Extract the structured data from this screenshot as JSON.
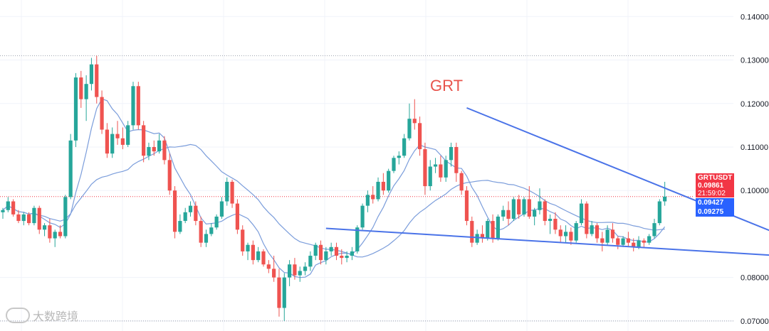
{
  "chart_data": {
    "type": "candlestick",
    "title": "GRT",
    "symbol": "GRTUSDT",
    "ylim": [
      0.069,
      0.1425
    ],
    "y_ticks": [
      "0.14000",
      "0.13000",
      "0.12000",
      "0.11000",
      "0.10000",
      "0.08000",
      "0.07000"
    ],
    "last_price": "0.09861",
    "countdown": "21:59:02",
    "ma_values": [
      "0.09427",
      "0.09275"
    ],
    "colors": {
      "up": "#26a69a",
      "down": "#ef5350",
      "ma": "#7b9ddb",
      "trendline": "#4a73e8",
      "title": "#e8534b",
      "price_tag": "#f23645",
      "ma_tag": "#2962ff"
    },
    "candles": [
      [
        0.095,
        0.096,
        0.0935,
        0.0955
      ],
      [
        0.0955,
        0.0985,
        0.095,
        0.0975
      ],
      [
        0.0975,
        0.098,
        0.094,
        0.0945
      ],
      [
        0.0945,
        0.0955,
        0.0925,
        0.093
      ],
      [
        0.093,
        0.095,
        0.092,
        0.0945
      ],
      [
        0.0945,
        0.095,
        0.092,
        0.0925
      ],
      [
        0.0925,
        0.0965,
        0.092,
        0.096
      ],
      [
        0.096,
        0.0965,
        0.09,
        0.091
      ],
      [
        0.091,
        0.0925,
        0.0895,
        0.092
      ],
      [
        0.092,
        0.0935,
        0.088,
        0.089
      ],
      [
        0.089,
        0.091,
        0.087,
        0.0905
      ],
      [
        0.0905,
        0.092,
        0.089,
        0.0895
      ],
      [
        0.0895,
        0.099,
        0.089,
        0.0985
      ],
      [
        0.0985,
        0.113,
        0.098,
        0.1115
      ],
      [
        0.1115,
        0.127,
        0.11,
        0.126
      ],
      [
        0.126,
        0.1275,
        0.119,
        0.121
      ],
      [
        0.121,
        0.1265,
        0.116,
        0.1245
      ],
      [
        0.1245,
        0.1305,
        0.123,
        0.129
      ],
      [
        0.129,
        0.131,
        0.12,
        0.1215
      ],
      [
        0.1215,
        0.123,
        0.113,
        0.114
      ],
      [
        0.114,
        0.1155,
        0.1075,
        0.1085
      ],
      [
        0.1085,
        0.1145,
        0.1075,
        0.113
      ],
      [
        0.113,
        0.116,
        0.1105,
        0.112
      ],
      [
        0.112,
        0.1145,
        0.1095,
        0.1105
      ],
      [
        0.1105,
        0.116,
        0.11,
        0.115
      ],
      [
        0.115,
        0.125,
        0.114,
        0.124
      ],
      [
        0.124,
        0.125,
        0.114,
        0.115
      ],
      [
        0.115,
        0.116,
        0.1065,
        0.108
      ],
      [
        0.108,
        0.111,
        0.107,
        0.11
      ],
      [
        0.11,
        0.1115,
        0.108,
        0.109
      ],
      [
        0.109,
        0.113,
        0.1085,
        0.1115
      ],
      [
        0.1115,
        0.1125,
        0.106,
        0.107
      ],
      [
        0.107,
        0.1085,
        0.099,
        0.1
      ],
      [
        0.1,
        0.101,
        0.089,
        0.0905
      ],
      [
        0.0905,
        0.0945,
        0.09,
        0.093
      ],
      [
        0.093,
        0.096,
        0.0925,
        0.095
      ],
      [
        0.095,
        0.0975,
        0.094,
        0.0965
      ],
      [
        0.0965,
        0.0975,
        0.092,
        0.093
      ],
      [
        0.093,
        0.094,
        0.087,
        0.088
      ],
      [
        0.088,
        0.091,
        0.087,
        0.09
      ],
      [
        0.09,
        0.0925,
        0.0895,
        0.0915
      ],
      [
        0.0915,
        0.0945,
        0.091,
        0.094
      ],
      [
        0.094,
        0.0985,
        0.0935,
        0.0975
      ],
      [
        0.0975,
        0.103,
        0.0965,
        0.102
      ],
      [
        0.102,
        0.1025,
        0.096,
        0.097
      ],
      [
        0.097,
        0.098,
        0.09,
        0.091
      ],
      [
        0.091,
        0.092,
        0.085,
        0.086
      ],
      [
        0.086,
        0.088,
        0.084,
        0.0875
      ],
      [
        0.0875,
        0.0885,
        0.083,
        0.084
      ],
      [
        0.084,
        0.087,
        0.0835,
        0.086
      ],
      [
        0.086,
        0.0865,
        0.0825,
        0.083
      ],
      [
        0.083,
        0.084,
        0.081,
        0.082
      ],
      [
        0.082,
        0.085,
        0.079,
        0.08
      ],
      [
        0.08,
        0.082,
        0.071,
        0.073
      ],
      [
        0.073,
        0.081,
        0.07,
        0.08
      ],
      [
        0.08,
        0.084,
        0.078,
        0.083
      ],
      [
        0.083,
        0.0845,
        0.0795,
        0.0805
      ],
      [
        0.0805,
        0.0825,
        0.079,
        0.0815
      ],
      [
        0.0815,
        0.0835,
        0.0805,
        0.0825
      ],
      [
        0.0825,
        0.086,
        0.0815,
        0.085
      ],
      [
        0.085,
        0.088,
        0.084,
        0.0875
      ],
      [
        0.0875,
        0.0885,
        0.083,
        0.084
      ],
      [
        0.084,
        0.087,
        0.083,
        0.086
      ],
      [
        0.086,
        0.088,
        0.085,
        0.087
      ],
      [
        0.087,
        0.088,
        0.084,
        0.085
      ],
      [
        0.085,
        0.0865,
        0.083,
        0.0845
      ],
      [
        0.0845,
        0.086,
        0.0835,
        0.085
      ],
      [
        0.085,
        0.087,
        0.084,
        0.086
      ],
      [
        0.086,
        0.092,
        0.0855,
        0.0915
      ],
      [
        0.0915,
        0.097,
        0.091,
        0.0965
      ],
      [
        0.0965,
        0.1,
        0.095,
        0.099
      ],
      [
        0.099,
        0.101,
        0.097,
        0.098
      ],
      [
        0.098,
        0.103,
        0.0975,
        0.102
      ],
      [
        0.102,
        0.104,
        0.099,
        0.1
      ],
      [
        0.1,
        0.105,
        0.0995,
        0.1045
      ],
      [
        0.1045,
        0.108,
        0.104,
        0.1075
      ],
      [
        0.1075,
        0.109,
        0.106,
        0.108
      ],
      [
        0.108,
        0.113,
        0.1075,
        0.112
      ],
      [
        0.112,
        0.12,
        0.1115,
        0.1165
      ],
      [
        0.1165,
        0.121,
        0.114,
        0.1155
      ],
      [
        0.1155,
        0.117,
        0.108,
        0.1095
      ],
      [
        0.1095,
        0.111,
        0.099,
        0.101
      ],
      [
        0.101,
        0.107,
        0.1,
        0.1055
      ],
      [
        0.1055,
        0.1075,
        0.104,
        0.106
      ],
      [
        0.106,
        0.108,
        0.102,
        0.103
      ],
      [
        0.103,
        0.108,
        0.102,
        0.107
      ],
      [
        0.107,
        0.111,
        0.1055,
        0.11
      ],
      [
        0.11,
        0.111,
        0.102,
        0.104
      ],
      [
        0.104,
        0.1045,
        0.099,
        0.1
      ],
      [
        0.1,
        0.101,
        0.092,
        0.093
      ],
      [
        0.093,
        0.094,
        0.087,
        0.088
      ],
      [
        0.088,
        0.091,
        0.0875,
        0.09
      ],
      [
        0.09,
        0.092,
        0.088,
        0.089
      ],
      [
        0.089,
        0.0935,
        0.0885,
        0.093
      ],
      [
        0.093,
        0.0945,
        0.088,
        0.089
      ],
      [
        0.089,
        0.0945,
        0.0885,
        0.094
      ],
      [
        0.094,
        0.0965,
        0.093,
        0.0955
      ],
      [
        0.0955,
        0.0975,
        0.092,
        0.0935
      ],
      [
        0.0935,
        0.0985,
        0.093,
        0.098
      ],
      [
        0.098,
        0.099,
        0.0935,
        0.0945
      ],
      [
        0.0945,
        0.0985,
        0.094,
        0.098
      ],
      [
        0.098,
        0.101,
        0.0935,
        0.094
      ],
      [
        0.094,
        0.096,
        0.092,
        0.0955
      ],
      [
        0.0955,
        0.1005,
        0.0945,
        0.0975
      ],
      [
        0.0975,
        0.098,
        0.092,
        0.093
      ],
      [
        0.093,
        0.0945,
        0.09,
        0.0935
      ],
      [
        0.0935,
        0.095,
        0.09,
        0.091
      ],
      [
        0.091,
        0.092,
        0.088,
        0.0895
      ],
      [
        0.0895,
        0.092,
        0.088,
        0.0905
      ],
      [
        0.0905,
        0.0915,
        0.0875,
        0.0885
      ],
      [
        0.0885,
        0.093,
        0.088,
        0.0925
      ],
      [
        0.0925,
        0.098,
        0.092,
        0.097
      ],
      [
        0.097,
        0.0975,
        0.089,
        0.09
      ],
      [
        0.09,
        0.093,
        0.0895,
        0.092
      ],
      [
        0.092,
        0.0925,
        0.088,
        0.089
      ],
      [
        0.089,
        0.0905,
        0.086,
        0.088
      ],
      [
        0.088,
        0.092,
        0.0875,
        0.091
      ],
      [
        0.091,
        0.0925,
        0.088,
        0.089
      ],
      [
        0.089,
        0.0895,
        0.0865,
        0.0875
      ],
      [
        0.0875,
        0.0895,
        0.087,
        0.089
      ],
      [
        0.089,
        0.0905,
        0.087,
        0.088
      ],
      [
        0.088,
        0.089,
        0.086,
        0.087
      ],
      [
        0.087,
        0.0895,
        0.0865,
        0.0885
      ],
      [
        0.0885,
        0.089,
        0.087,
        0.088
      ],
      [
        0.088,
        0.09,
        0.0875,
        0.0895
      ],
      [
        0.0895,
        0.0935,
        0.089,
        0.0925
      ],
      [
        0.0925,
        0.098,
        0.092,
        0.0975
      ],
      [
        0.0975,
        0.102,
        0.0965,
        0.0986
      ]
    ],
    "trendlines": [
      {
        "name": "upper-resistance",
        "x": [
          89,
          171
        ],
        "y": [
          0.119,
          0.0792
        ]
      },
      {
        "name": "lower-support",
        "x": [
          62,
          167
        ],
        "y": [
          0.0913,
          0.0837
        ]
      }
    ]
  }
}
